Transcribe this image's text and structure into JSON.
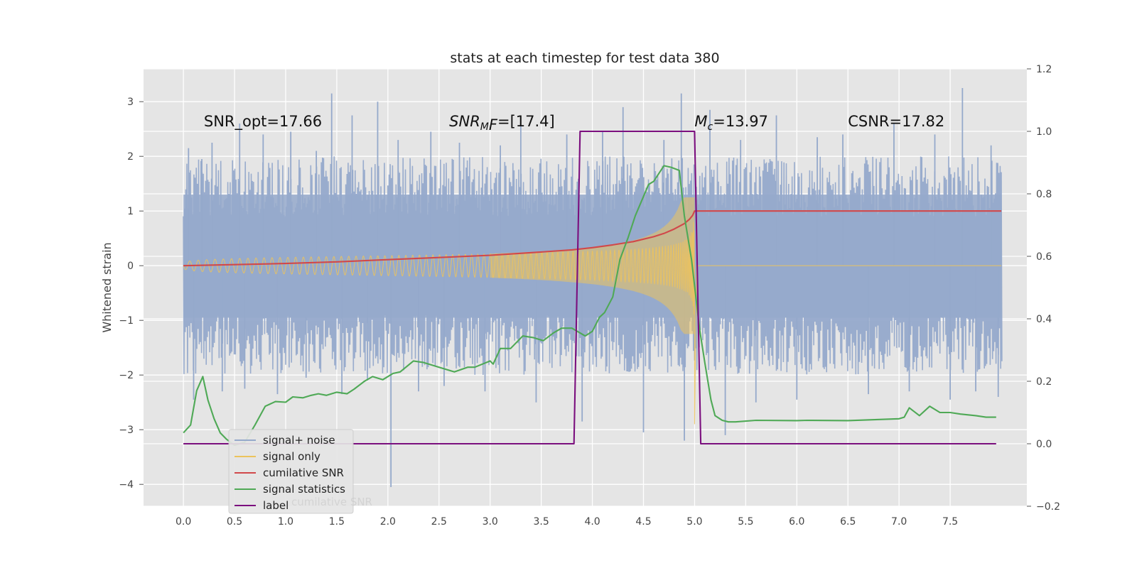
{
  "chart_data": {
    "type": "line",
    "title": "stats at each timestep for test data 380",
    "ylabel": "Whitened strain",
    "xlabel": "",
    "xlim": [
      -0.39,
      8.25
    ],
    "ylim": [
      -4.4,
      3.6
    ],
    "y2lim": [
      -0.2,
      1.2
    ],
    "x_ticks": [
      0.0,
      0.5,
      1.0,
      1.5,
      2.0,
      2.5,
      3.0,
      3.5,
      4.0,
      4.5,
      5.0,
      5.5,
      6.0,
      6.5,
      7.0,
      7.5
    ],
    "x_tick_labels": [
      "0.0",
      "0.5",
      "1.0",
      "1.5",
      "2.0",
      "2.5",
      "3.0",
      "3.5",
      "4.0",
      "4.5",
      "5.0",
      "5.5",
      "6.0",
      "6.5",
      "7.0",
      "7.5"
    ],
    "y_ticks": [
      -4,
      -3,
      -2,
      -1,
      0,
      1,
      2,
      3
    ],
    "y_tick_labels": [
      "−4",
      "−3",
      "−2",
      "−1",
      "0",
      "1",
      "2",
      "3"
    ],
    "y2_ticks": [
      -0.2,
      0.0,
      0.2,
      0.4,
      0.6,
      0.8,
      1.0,
      1.2
    ],
    "y2_tick_labels": [
      "−0.2",
      "0.0",
      "0.2",
      "0.4",
      "0.6",
      "0.8",
      "1.0",
      "1.2"
    ],
    "grid": true,
    "legend_position": "lower-left",
    "annotations": [
      {
        "text": "SNR_opt=17.66",
        "x": 0.2,
        "y": 2.55
      },
      {
        "text": "SNR",
        "sub": "M",
        "suffix": "F=[17.4]",
        "italic": true,
        "x": 2.6,
        "y": 2.55
      },
      {
        "text": "M",
        "sub": "c",
        "suffix": "=13.97",
        "italic": true,
        "x": 5.0,
        "y": 2.55
      },
      {
        "text": "CSNR=17.82",
        "x": 6.5,
        "y": 2.55
      }
    ],
    "noise_series": {
      "name": "signal+ noise",
      "color": "#95a9cb",
      "x_range": [
        0.0,
        8.0
      ],
      "band_low": -2.0,
      "band_high": 2.0,
      "spikes": [
        {
          "x": 0.05,
          "y": 2.15
        },
        {
          "x": 0.1,
          "y": -2.45
        },
        {
          "x": 0.18,
          "y": 1.95
        },
        {
          "x": 0.28,
          "y": 2.25
        },
        {
          "x": 0.38,
          "y": -2.3
        },
        {
          "x": 0.55,
          "y": 2.6
        },
        {
          "x": 0.6,
          "y": -2.25
        },
        {
          "x": 0.78,
          "y": 2.4
        },
        {
          "x": 0.92,
          "y": -2.35
        },
        {
          "x": 1.05,
          "y": 2.45
        },
        {
          "x": 1.2,
          "y": -2.05
        },
        {
          "x": 1.3,
          "y": 2.1
        },
        {
          "x": 1.45,
          "y": 3.15
        },
        {
          "x": 1.55,
          "y": -2.35
        },
        {
          "x": 1.65,
          "y": 2.75
        },
        {
          "x": 1.8,
          "y": -2.1
        },
        {
          "x": 1.9,
          "y": 3.0
        },
        {
          "x": 2.03,
          "y": -4.05
        },
        {
          "x": 2.1,
          "y": 2.3
        },
        {
          "x": 2.3,
          "y": -2.3
        },
        {
          "x": 2.42,
          "y": 2.45
        },
        {
          "x": 2.55,
          "y": -2.2
        },
        {
          "x": 2.7,
          "y": 2.25
        },
        {
          "x": 2.95,
          "y": -2.3
        },
        {
          "x": 3.1,
          "y": 2.2
        },
        {
          "x": 3.3,
          "y": 2.55
        },
        {
          "x": 3.45,
          "y": -2.5
        },
        {
          "x": 3.75,
          "y": 2.4
        },
        {
          "x": 3.9,
          "y": -2.85
        },
        {
          "x": 4.1,
          "y": 2.45
        },
        {
          "x": 4.3,
          "y": 2.9
        },
        {
          "x": 4.5,
          "y": -3.05
        },
        {
          "x": 4.7,
          "y": 2.3
        },
        {
          "x": 4.87,
          "y": 3.15
        },
        {
          "x": 4.9,
          "y": -3.2
        },
        {
          "x": 5.15,
          "y": 2.85
        },
        {
          "x": 5.3,
          "y": -3.1
        },
        {
          "x": 5.45,
          "y": 2.3
        },
        {
          "x": 5.6,
          "y": -2.5
        },
        {
          "x": 5.8,
          "y": 2.75
        },
        {
          "x": 6.0,
          "y": -2.45
        },
        {
          "x": 6.2,
          "y": 2.35
        },
        {
          "x": 6.45,
          "y": 2.4
        },
        {
          "x": 6.7,
          "y": -2.35
        },
        {
          "x": 6.95,
          "y": 2.6
        },
        {
          "x": 7.1,
          "y": -2.3
        },
        {
          "x": 7.35,
          "y": 2.4
        },
        {
          "x": 7.5,
          "y": -2.45
        },
        {
          "x": 7.62,
          "y": 3.25
        },
        {
          "x": 7.75,
          "y": -2.3
        },
        {
          "x": 7.9,
          "y": 2.2
        },
        {
          "x": 7.97,
          "y": -2.4
        }
      ]
    },
    "series": [
      {
        "name": "signal only",
        "color": "#ecc35c",
        "axis": "left",
        "kind": "chirp",
        "x_range": [
          0.0,
          5.03
        ],
        "merger_x": 5.0,
        "peak_amplitude": 1.3
      },
      {
        "name": "cumilative SNR",
        "color": "#d1484a",
        "axis": "left",
        "x": [
          0.0,
          0.5,
          1.0,
          1.5,
          2.0,
          2.5,
          3.0,
          3.5,
          3.8,
          4.0,
          4.2,
          4.4,
          4.6,
          4.7,
          4.8,
          4.9,
          4.95,
          4.98,
          5.0,
          5.01,
          5.02,
          8.0
        ],
        "y": [
          0.0,
          0.02,
          0.04,
          0.07,
          0.11,
          0.15,
          0.19,
          0.25,
          0.29,
          0.33,
          0.38,
          0.44,
          0.53,
          0.59,
          0.67,
          0.77,
          0.85,
          0.92,
          1.0,
          1.0,
          1.0,
          1.0
        ]
      },
      {
        "name": "signal statistics",
        "color": "#4fa956",
        "axis": "right",
        "x": [
          0.0,
          0.07,
          0.13,
          0.19,
          0.24,
          0.3,
          0.36,
          0.42,
          0.5,
          0.6,
          0.7,
          0.8,
          0.9,
          1.0,
          1.07,
          1.17,
          1.25,
          1.32,
          1.4,
          1.5,
          1.6,
          1.67,
          1.77,
          1.85,
          1.95,
          2.05,
          2.12,
          2.25,
          2.35,
          2.5,
          2.65,
          2.78,
          2.85,
          3.0,
          3.03,
          3.1,
          3.2,
          3.32,
          3.42,
          3.52,
          3.62,
          3.7,
          3.8,
          3.93,
          4.0,
          4.07,
          4.12,
          4.2,
          4.27,
          4.35,
          4.42,
          4.55,
          4.6,
          4.7,
          4.77,
          4.85,
          4.9,
          4.97,
          5.05,
          5.1,
          5.16,
          5.2,
          5.27,
          5.33,
          5.4,
          5.6,
          6.0,
          6.1,
          6.5,
          7.0,
          7.05,
          7.1,
          7.2,
          7.3,
          7.4,
          7.5,
          7.6,
          7.75,
          7.85,
          7.95
        ],
        "y": [
          0.035,
          0.06,
          0.17,
          0.215,
          0.14,
          0.08,
          0.035,
          0.015,
          -0.005,
          0.005,
          0.06,
          0.12,
          0.135,
          0.133,
          0.15,
          0.147,
          0.155,
          0.16,
          0.155,
          0.165,
          0.16,
          0.175,
          0.2,
          0.215,
          0.205,
          0.225,
          0.23,
          0.265,
          0.26,
          0.245,
          0.23,
          0.245,
          0.245,
          0.265,
          0.255,
          0.305,
          0.305,
          0.345,
          0.34,
          0.33,
          0.355,
          0.37,
          0.37,
          0.345,
          0.36,
          0.405,
          0.42,
          0.47,
          0.59,
          0.66,
          0.73,
          0.83,
          0.84,
          0.89,
          0.885,
          0.875,
          0.73,
          0.59,
          0.365,
          0.26,
          0.14,
          0.09,
          0.075,
          0.07,
          0.07,
          0.075,
          0.074,
          0.075,
          0.074,
          0.08,
          0.085,
          0.115,
          0.09,
          0.12,
          0.1,
          0.1,
          0.095,
          0.09,
          0.085,
          0.085
        ]
      },
      {
        "name": "label",
        "color": "#7b0f7e",
        "axis": "right",
        "x": [
          0.0,
          3.82,
          3.88,
          5.0,
          5.06,
          7.95
        ],
        "y": [
          0.0,
          0.0,
          1.0,
          1.0,
          0.0,
          0.0
        ]
      }
    ],
    "legend": [
      {
        "label": "signal+ noise",
        "color": "#95a9cb"
      },
      {
        "label": "signal only",
        "color": "#ecc35c"
      },
      {
        "label": "cumilative SNR",
        "color": "#d1484a"
      },
      {
        "label": "signal statistics",
        "color": "#4fa956"
      },
      {
        "label": "label",
        "color": "#7b0f7e"
      }
    ],
    "legend_ghost_text": "cumilative SNR"
  }
}
